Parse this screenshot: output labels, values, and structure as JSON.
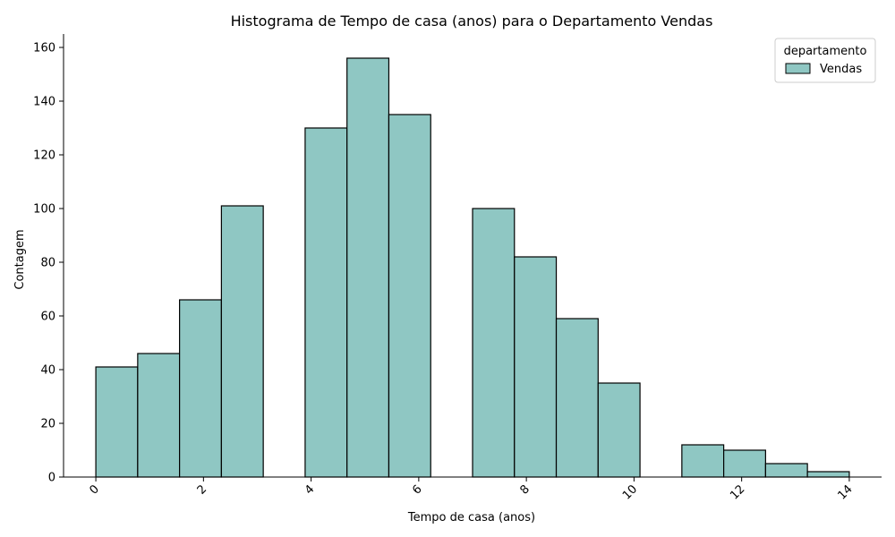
{
  "chart_data": {
    "type": "bar",
    "title": "Histograma de Tempo de casa (anos) para o Departamento Vendas",
    "xlabel": "Tempo de casa (anos)",
    "ylabel": "Contagem",
    "xlim": [
      -0.6,
      14.6
    ],
    "ylim": [
      0,
      165
    ],
    "xticks": [
      0,
      2,
      4,
      6,
      8,
      10,
      12,
      14
    ],
    "xtick_labels": [
      "0",
      "2",
      "4",
      "6",
      "8",
      "10",
      "12",
      "14"
    ],
    "yticks": [
      0,
      20,
      40,
      60,
      80,
      100,
      120,
      140,
      160
    ],
    "ytick_labels": [
      "0",
      "20",
      "40",
      "60",
      "80",
      "100",
      "120",
      "140",
      "160"
    ],
    "bin_edges": [
      0,
      0.7778,
      1.5556,
      2.3333,
      3.1111,
      3.8889,
      4.6667,
      5.4444,
      6.2222,
      7.0,
      7.7778,
      8.5556,
      9.3333,
      10.1111,
      10.8889,
      11.6667,
      12.4444,
      13.2222,
      14.0
    ],
    "values": [
      41,
      46,
      66,
      101,
      0,
      130,
      156,
      135,
      0,
      100,
      82,
      59,
      35,
      0,
      12,
      10,
      5,
      2
    ],
    "series": [
      {
        "name": "Vendas",
        "values": [
          41,
          46,
          66,
          101,
          0,
          130,
          156,
          135,
          0,
          100,
          82,
          59,
          35,
          0,
          12,
          10,
          5,
          2
        ]
      }
    ],
    "legend": {
      "title": "departamento",
      "entries": [
        "Vendas"
      ],
      "placement": "top-right"
    },
    "grid": false,
    "colors": {
      "bar_fill": "#8fc7c3",
      "bar_edge": "#000000",
      "axis": "#000000"
    }
  }
}
